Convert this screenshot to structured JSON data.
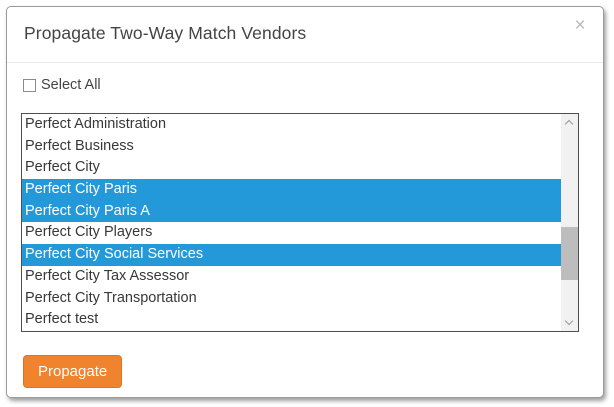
{
  "modal": {
    "title": "Propagate Two-Way Match Vendors",
    "close_icon": "×"
  },
  "select_all": {
    "label": "Select All",
    "checked": false
  },
  "vendor_list": {
    "items": [
      {
        "label": "Perfect Administration",
        "selected": false
      },
      {
        "label": "Perfect Business",
        "selected": false
      },
      {
        "label": "Perfect City",
        "selected": false
      },
      {
        "label": "Perfect City Paris",
        "selected": true
      },
      {
        "label": "Perfect City Paris A",
        "selected": true
      },
      {
        "label": "Perfect City Players",
        "selected": false
      },
      {
        "label": "Perfect City Social Services",
        "selected": true
      },
      {
        "label": "Perfect City Tax Assessor",
        "selected": false
      },
      {
        "label": "Perfect City Transportation",
        "selected": false
      },
      {
        "label": "Perfect test",
        "selected": false
      }
    ]
  },
  "buttons": {
    "propagate_label": "Propagate"
  },
  "colors": {
    "selection_blue": "#2499d9",
    "button_orange": "#f0832d"
  }
}
